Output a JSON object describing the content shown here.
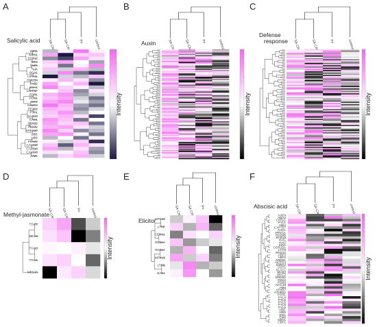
{
  "figure": {
    "panels": [
      {
        "id": "A",
        "title": "Salicylic acid",
        "columns": [
          "SA-CNPsPx",
          "SA-CNPs",
          "Px",
          "control"
        ],
        "colorbar_label": "Intensity",
        "gene_labels": [
          "WIN1",
          "IMPA1",
          "SOT12",
          "SRO",
          "BMI5",
          "LIA",
          "BCA1",
          "LIPK11",
          "RGLG4",
          "FAB2",
          "ZSH1",
          "LIGTNF",
          "EDS1",
          "DOX1",
          "SRO",
          "SAMT4",
          "PEX22",
          "PTP1",
          "SAG13",
          "CAD1",
          "PEX22",
          "PEX32",
          "KPEX32",
          "LEC",
          "LEC",
          "PEX22",
          "CAL518",
          "CAL518",
          "CAL518",
          "AIM1"
        ],
        "matrix": [
          [
            -0.3,
            0.1,
            0.9,
            0.1
          ],
          [
            0.6,
            -1.0,
            0.3,
            0.4
          ],
          [
            -0.5,
            -0.8,
            0.6,
            0.2
          ],
          [
            0.3,
            0.6,
            0.0,
            -0.4
          ],
          [
            0.2,
            -0.6,
            0.1,
            0.8
          ],
          [
            0.4,
            -0.2,
            0.5,
            -0.3
          ],
          [
            -0.2,
            0.8,
            -0.6,
            -0.9
          ],
          [
            -1.0,
            -0.2,
            -0.3,
            0.4
          ],
          [
            0.1,
            0.5,
            0.2,
            -0.5
          ],
          [
            0.6,
            0.0,
            0.5,
            -1.0
          ],
          [
            0.8,
            0.3,
            0.1,
            -0.3
          ],
          [
            0.0,
            0.4,
            -0.5,
            0.2
          ],
          [
            0.5,
            0.7,
            -0.4,
            -0.2
          ],
          [
            0.4,
            0.6,
            -0.2,
            -0.6
          ],
          [
            0.6,
            0.8,
            -0.1,
            -0.4
          ],
          [
            0.9,
            0.5,
            -0.4,
            -0.6
          ],
          [
            0.5,
            0.4,
            -0.5,
            -0.2
          ],
          [
            0.4,
            0.7,
            -0.3,
            0.0
          ],
          [
            0.3,
            0.5,
            0.2,
            -0.8
          ],
          [
            0.7,
            0.4,
            -0.6,
            0.0
          ],
          [
            0.6,
            0.3,
            0.4,
            -0.6
          ],
          [
            0.5,
            0.6,
            0.2,
            -0.2
          ],
          [
            0.8,
            0.3,
            -0.5,
            -0.3
          ],
          [
            0.6,
            0.7,
            0.1,
            -0.6
          ],
          [
            -0.3,
            0.0,
            -0.6,
            0.1
          ],
          [
            0.1,
            -0.2,
            0.3,
            -0.9
          ],
          [
            0.4,
            -0.7,
            0.5,
            0.2
          ],
          [
            0.6,
            -0.3,
            0.2,
            -0.4
          ],
          [
            0.2,
            0.1,
            0.4,
            -0.5
          ],
          [
            -0.3,
            0.3,
            0.5,
            -0.2
          ]
        ]
      },
      {
        "id": "B",
        "title": "Auxin",
        "columns": [
          "SA-CNPsPx",
          "SA-CNPs",
          "Px",
          "control"
        ],
        "colorbar_label": "Intensity",
        "gene_labels": [],
        "matrix_rows": 96
      },
      {
        "id": "C",
        "title": "Defense response",
        "columns": [
          "SA-CNPsPx",
          "SA-CNPs",
          "Px",
          "control"
        ],
        "colorbar_label": "Intensity",
        "gene_labels": [],
        "matrix_rows": 90
      },
      {
        "id": "D",
        "title": "Methyl-jasmonate",
        "columns": [
          "SA-CNPsPx",
          "SA-CNPs",
          "Px",
          "control"
        ],
        "colorbar_label": "Intensity",
        "gene_labels": [
          "TGG1",
          "MES9",
          "TGG2",
          "TGG1",
          "MES18"
        ],
        "matrix": [
          [
            0.3,
            0.6,
            -0.7,
            -0.2
          ],
          [
            0.2,
            0.4,
            -1.0,
            -0.5
          ],
          [
            0.05,
            0.0,
            0.1,
            -0.1
          ],
          [
            0.2,
            0.3,
            0.0,
            -0.6
          ],
          [
            -1.0,
            0.15,
            0.3,
            -0.15
          ]
        ]
      },
      {
        "id": "E",
        "title": "Elicitor",
        "columns": [
          "SA-CNPsPx",
          "SA-CNPs",
          "Px",
          "control"
        ],
        "colorbar_label": "Intensity",
        "gene_labels": [
          "MPK19",
          "LTRP",
          "CERK1",
          "RD31A",
          "RD31A",
          "MPK19",
          "LTRB",
          "BAK1"
        ],
        "matrix": [
          [
            -0.2,
            0.1,
            0.4,
            -1.0
          ],
          [
            0.3,
            -0.3,
            0.5,
            -0.6
          ],
          [
            -0.5,
            0.2,
            0.0,
            0.3
          ],
          [
            0.4,
            -0.4,
            -0.2,
            -0.1
          ],
          [
            -0.3,
            0.5,
            0.0,
            -0.6
          ],
          [
            0.6,
            -0.2,
            0.3,
            -0.5
          ],
          [
            -0.1,
            0.8,
            -0.3,
            -0.2
          ],
          [
            0.1,
            0.7,
            0.0,
            -0.4
          ]
        ]
      },
      {
        "id": "F",
        "title": "Abscisic acid",
        "columns": [
          "SA-CNPsPx",
          "SA-CNP",
          "Px",
          "control"
        ],
        "colorbar_label": "Intensity",
        "gene_labels": [
          "AAE4",
          "ABA2",
          "LTPG1",
          "PYL1",
          "ABI2",
          "CYP707",
          "AHG1",
          "PP2CA",
          "RD29B",
          "RAB18",
          "HAI1",
          "HAI2",
          "KIN1",
          "COR15A",
          "LTI78",
          "ERD10",
          "ABF3",
          "ABF2",
          "AREB1",
          "NCED3",
          "SnRK2",
          "OST1",
          "SLAC1",
          "MYB2",
          "MYC2",
          "DREB2",
          "RD22",
          "RD26",
          "NAC19",
          "HB6",
          "ATHB7",
          "ATHB12",
          "PYR1",
          "PYL4",
          "PYL5",
          "PYL6",
          "PYL8",
          "PYL9",
          "ABI1",
          "ABI5",
          "EM1",
          "EM6",
          "ADH1",
          "CBF1"
        ],
        "matrix_rows": 44
      }
    ]
  }
}
